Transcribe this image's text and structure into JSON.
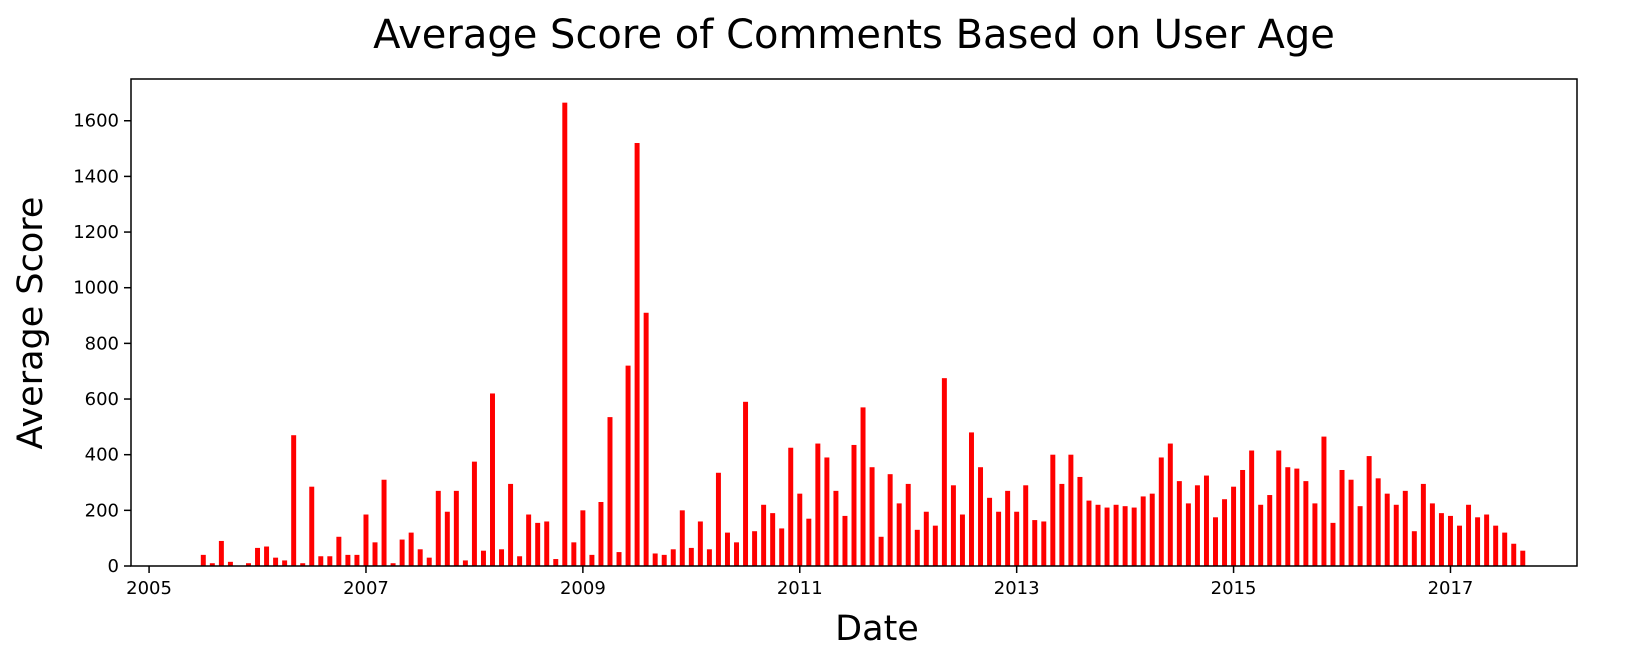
{
  "chart_data": {
    "type": "bar",
    "title": "Average Score of Comments Based on User Age",
    "xlabel": "Date",
    "ylabel": "Average Score",
    "x_axis": "date (monthly)",
    "xlim": [
      "2004-11",
      "2018-03"
    ],
    "ylim": [
      0,
      1750
    ],
    "xticks": [
      "2005",
      "2007",
      "2009",
      "2011",
      "2013",
      "2015",
      "2017"
    ],
    "yticks": [
      0,
      200,
      400,
      600,
      800,
      1000,
      1200,
      1400,
      1600
    ],
    "bar_color": "#ff0000",
    "grid": false,
    "legend": "none",
    "x": [
      "2005-07",
      "2005-08",
      "2005-09",
      "2005-10",
      "2005-11",
      "2005-12",
      "2006-01",
      "2006-02",
      "2006-03",
      "2006-04",
      "2006-05",
      "2006-06",
      "2006-07",
      "2006-08",
      "2006-09",
      "2006-10",
      "2006-11",
      "2006-12",
      "2007-01",
      "2007-02",
      "2007-03",
      "2007-04",
      "2007-05",
      "2007-06",
      "2007-07",
      "2007-08",
      "2007-09",
      "2007-10",
      "2007-11",
      "2007-12",
      "2008-01",
      "2008-02",
      "2008-03",
      "2008-04",
      "2008-05",
      "2008-06",
      "2008-07",
      "2008-08",
      "2008-09",
      "2008-10",
      "2008-11",
      "2008-12",
      "2009-01",
      "2009-02",
      "2009-03",
      "2009-04",
      "2009-05",
      "2009-06",
      "2009-07",
      "2009-08",
      "2009-09",
      "2009-10",
      "2009-11",
      "2009-12",
      "2010-01",
      "2010-02",
      "2010-03",
      "2010-04",
      "2010-05",
      "2010-06",
      "2010-07",
      "2010-08",
      "2010-09",
      "2010-10",
      "2010-11",
      "2010-12",
      "2011-01",
      "2011-02",
      "2011-03",
      "2011-04",
      "2011-05",
      "2011-06",
      "2011-07",
      "2011-08",
      "2011-09",
      "2011-10",
      "2011-11",
      "2011-12",
      "2012-01",
      "2012-02",
      "2012-03",
      "2012-04",
      "2012-05",
      "2012-06",
      "2012-07",
      "2012-08",
      "2012-09",
      "2012-10",
      "2012-11",
      "2012-12",
      "2013-01",
      "2013-02",
      "2013-03",
      "2013-04",
      "2013-05",
      "2013-06",
      "2013-07",
      "2013-08",
      "2013-09",
      "2013-10",
      "2013-11",
      "2013-12",
      "2014-01",
      "2014-02",
      "2014-03",
      "2014-04",
      "2014-05",
      "2014-06",
      "2014-07",
      "2014-08",
      "2014-09",
      "2014-10",
      "2014-11",
      "2014-12",
      "2015-01",
      "2015-02",
      "2015-03",
      "2015-04",
      "2015-05",
      "2015-06",
      "2015-07",
      "2015-08",
      "2015-09",
      "2015-10",
      "2015-11",
      "2015-12",
      "2016-01",
      "2016-02",
      "2016-03",
      "2016-04",
      "2016-05",
      "2016-06",
      "2016-07",
      "2016-08",
      "2016-09",
      "2016-10",
      "2016-11",
      "2016-12",
      "2017-01",
      "2017-02",
      "2017-03",
      "2017-04",
      "2017-05",
      "2017-06",
      "2017-07",
      "2017-08",
      "2017-09"
    ],
    "values": [
      40,
      10,
      90,
      15,
      0,
      10,
      65,
      70,
      30,
      20,
      470,
      10,
      285,
      35,
      35,
      105,
      40,
      40,
      185,
      85,
      310,
      10,
      95,
      120,
      60,
      30,
      270,
      195,
      270,
      20,
      375,
      55,
      620,
      60,
      295,
      35,
      185,
      155,
      160,
      25,
      1665,
      85,
      200,
      40,
      230,
      535,
      50,
      720,
      1520,
      910,
      45,
      40,
      60,
      200,
      65,
      160,
      60,
      335,
      120,
      85,
      590,
      125,
      220,
      190,
      135,
      425,
      260,
      170,
      440,
      390,
      270,
      180,
      435,
      570,
      355,
      105,
      330,
      225,
      295,
      130,
      195,
      145,
      675,
      290,
      185,
      480,
      355,
      245,
      195,
      270,
      195,
      290,
      165,
      160,
      400,
      295,
      400,
      320,
      235,
      220,
      210,
      220,
      215,
      210,
      250,
      260,
      390,
      440,
      305,
      225,
      290,
      325,
      175,
      240,
      285,
      345,
      415,
      220,
      255,
      415,
      355,
      350,
      305,
      225,
      465,
      155,
      345,
      310,
      215,
      395,
      315,
      260,
      220,
      270,
      125,
      295,
      225,
      190,
      180,
      145,
      220,
      175,
      185,
      145,
      120,
      80,
      55
    ]
  }
}
